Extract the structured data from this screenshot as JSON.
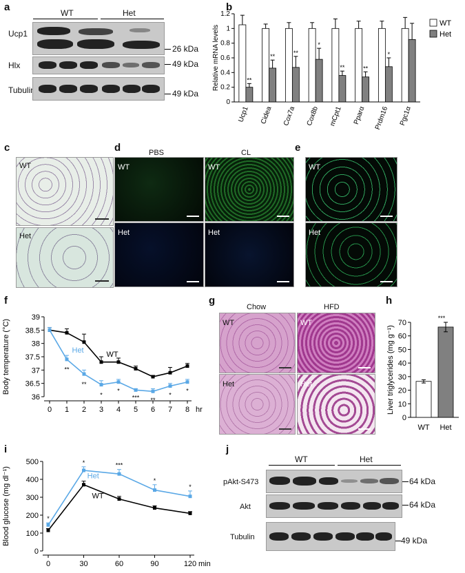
{
  "panels": {
    "a": {
      "label": "a",
      "groups": [
        "WT",
        "Het"
      ],
      "rows": [
        {
          "name": "Ucp1",
          "marker": "26 kDa"
        },
        {
          "name": "Hlx",
          "marker": "49 kDa"
        },
        {
          "name": "Tubulin",
          "marker": "49 kDa"
        }
      ]
    },
    "b": {
      "label": "b",
      "chart_data": {
        "type": "bar",
        "ylabel": "Relative mRNA levels",
        "ylim": [
          0,
          1.2
        ],
        "yticks": [
          "0",
          "0.2",
          "0.4",
          "0.6",
          "0.8",
          "1",
          "1.2"
        ],
        "categories": [
          "Ucp1",
          "Cidea",
          "Cox7a",
          "Cox8b",
          "mCpt1",
          "Pparα",
          "Prdm16",
          "Pgc1α"
        ],
        "series": [
          {
            "name": "WT",
            "color": "#ffffff",
            "values": [
              1.05,
              1.0,
              1.0,
              1.0,
              1.0,
              1.0,
              1.0,
              1.0
            ],
            "errors": [
              0.13,
              0.06,
              0.08,
              0.08,
              0.13,
              0.1,
              0.1,
              0.15
            ]
          },
          {
            "name": "Het",
            "color": "#808080",
            "values": [
              0.2,
              0.46,
              0.47,
              0.58,
              0.36,
              0.34,
              0.48,
              0.85
            ],
            "errors": [
              0.05,
              0.11,
              0.15,
              0.15,
              0.06,
              0.07,
              0.12,
              0.22
            ]
          }
        ],
        "significance": [
          "**",
          "**",
          "**",
          "*",
          "**",
          "**",
          "*",
          ""
        ]
      }
    },
    "c": {
      "label": "c",
      "images": [
        {
          "text": "WT"
        },
        {
          "text": "Het"
        }
      ]
    },
    "d": {
      "label": "d",
      "columns": [
        "PBS",
        "CL"
      ],
      "images": [
        {
          "text": "WT"
        },
        {
          "text": "WT"
        },
        {
          "text": "Het"
        },
        {
          "text": "Het"
        }
      ]
    },
    "e": {
      "label": "e",
      "images": [
        {
          "text": "WT"
        },
        {
          "text": "Het"
        }
      ]
    },
    "f": {
      "label": "f",
      "chart_data": {
        "type": "line",
        "ylabel": "Body temperature (°C)",
        "xunit": "hr",
        "x": [
          0,
          1,
          2,
          3,
          4,
          5,
          6,
          7,
          8
        ],
        "yticks": [
          "36",
          "36.5",
          "37",
          "37.5",
          "38",
          "38.5",
          "39"
        ],
        "ylim": [
          36,
          39
        ],
        "series": [
          {
            "name": "WT",
            "color": "#000000",
            "values": [
              38.5,
              38.4,
              38.05,
              37.3,
              37.3,
              37.05,
              36.75,
              36.9,
              37.15
            ],
            "errors": [
              0.1,
              0.15,
              0.3,
              0.2,
              0.15,
              0.1,
              0.05,
              0.2,
              0.1
            ]
          },
          {
            "name": "Het",
            "color": "#5aa8e6",
            "values": [
              38.5,
              37.4,
              36.85,
              36.45,
              36.55,
              36.25,
              36.2,
              36.4,
              36.55
            ],
            "errors": [
              0.1,
              0.15,
              0.15,
              0.15,
              0.1,
              0.05,
              0.1,
              0.1,
              0.1
            ]
          }
        ],
        "significance": [
          "",
          "**",
          "**",
          "*",
          "*",
          "***",
          "**",
          "*",
          "*"
        ]
      }
    },
    "g": {
      "label": "g",
      "columns": [
        "Chow",
        "HFD"
      ],
      "images": [
        {
          "text": "WT"
        },
        {
          "text": "WT"
        },
        {
          "text": "Het"
        },
        {
          "text": "Het"
        }
      ]
    },
    "h": {
      "label": "h",
      "chart_data": {
        "type": "bar",
        "ylabel": "Liver triglycerides (mg g⁻¹)",
        "ylim": [
          0,
          70
        ],
        "yticks": [
          "0",
          "10",
          "20",
          "30",
          "40",
          "50",
          "60",
          "70"
        ],
        "categories": [
          "WT",
          "Het"
        ],
        "values": [
          26.5,
          66.5
        ],
        "errors": [
          1.2,
          3.5
        ],
        "colors": [
          "#ffffff",
          "#808080"
        ],
        "significance": "***"
      }
    },
    "i": {
      "label": "i",
      "chart_data": {
        "type": "line",
        "ylabel": "Blood glucose (mg dl⁻¹)",
        "xunit": "min",
        "x": [
          0,
          30,
          60,
          90,
          120
        ],
        "ylim": [
          0,
          500
        ],
        "yticks": [
          "0",
          "100",
          "200",
          "300",
          "400",
          "500"
        ],
        "series": [
          {
            "name": "WT",
            "color": "#000000",
            "values": [
              115,
              370,
              290,
              240,
              210
            ],
            "errors": [
              10,
              20,
              15,
              12,
              10
            ]
          },
          {
            "name": "Het",
            "color": "#5aa8e6",
            "values": [
              145,
              450,
              430,
              340,
              305
            ],
            "errors": [
              12,
              20,
              25,
              30,
              30
            ]
          }
        ],
        "significance": [
          "*",
          "*",
          "***",
          "*",
          "*"
        ]
      }
    },
    "j": {
      "label": "j",
      "groups": [
        "WT",
        "Het"
      ],
      "rows": [
        {
          "name": "pAkt-S473",
          "marker": "64 kDa"
        },
        {
          "name": "Akt",
          "marker": "64 kDa"
        },
        {
          "name": "Tubulin",
          "marker": "49 kDa"
        }
      ]
    }
  },
  "scalebar_color": "#ffffff"
}
